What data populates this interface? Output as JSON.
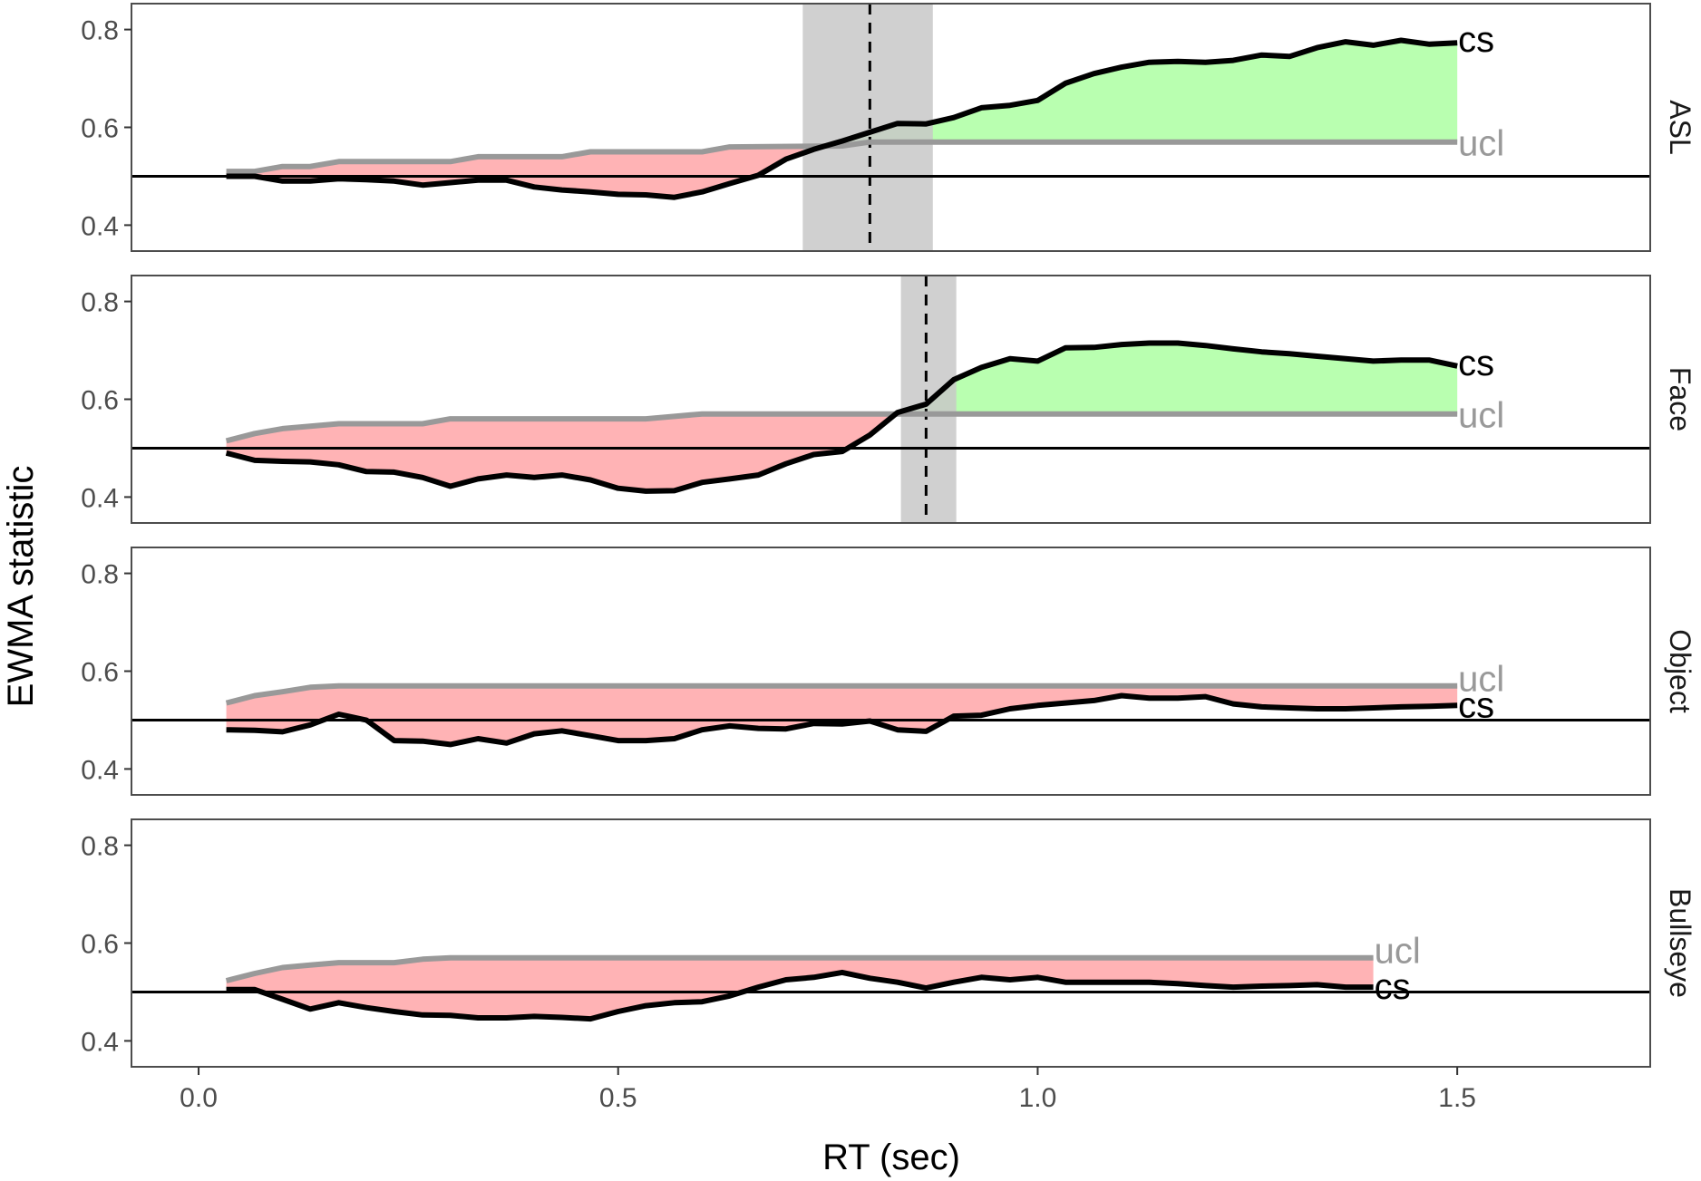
{
  "chart_data": {
    "type": "line",
    "xlabel": "RT (sec)",
    "ylabel": "EWMA statistic",
    "xlim": [
      -0.08,
      1.73
    ],
    "ylim": [
      0.4,
      0.8
    ],
    "x_ticks": [
      0.0,
      0.5,
      1.0,
      1.5
    ],
    "x_tick_labels": [
      "0.0",
      "0.5",
      "1.0",
      "1.5"
    ],
    "y_ticks": [
      0.4,
      0.6,
      0.8
    ],
    "y_tick_labels": [
      "0.4",
      "0.6",
      "0.8"
    ],
    "reference_value": 0.5,
    "grid": false,
    "colors": {
      "cs": "#000000",
      "ucl": "#999999",
      "below_fill": "#ffb3b5",
      "above_fill": "#b9ffb0",
      "band_fill": "#c8c8c8",
      "panel_border": "#4d4d4d",
      "ucl_label": "#999999",
      "cs_label": "#000000"
    },
    "panels": [
      {
        "name": "ASL",
        "onset": 0.8,
        "band": [
          0.72,
          0.875
        ],
        "cs_label": "cs",
        "ucl_label": "ucl",
        "cs": {
          "x": [
            0.033,
            0.067,
            0.1,
            0.133,
            0.167,
            0.2,
            0.233,
            0.267,
            0.3,
            0.333,
            0.367,
            0.4,
            0.433,
            0.467,
            0.5,
            0.533,
            0.567,
            0.6,
            0.633,
            0.667,
            0.7,
            0.733,
            0.767,
            0.8,
            0.833,
            0.867,
            0.9,
            0.933,
            0.967,
            1.0,
            1.033,
            1.067,
            1.1,
            1.133,
            1.167,
            1.2,
            1.233,
            1.267,
            1.3,
            1.333,
            1.367,
            1.4,
            1.433,
            1.467,
            1.5
          ],
          "y": [
            0.5,
            0.5,
            0.49,
            0.49,
            0.495,
            0.493,
            0.49,
            0.482,
            0.487,
            0.492,
            0.492,
            0.478,
            0.472,
            0.468,
            0.463,
            0.462,
            0.457,
            0.468,
            0.485,
            0.502,
            0.535,
            0.555,
            0.572,
            0.59,
            0.608,
            0.607,
            0.62,
            0.64,
            0.645,
            0.655,
            0.69,
            0.71,
            0.723,
            0.733,
            0.735,
            0.733,
            0.737,
            0.748,
            0.745,
            0.763,
            0.775,
            0.768,
            0.778,
            0.77,
            0.773
          ]
        },
        "ucl": {
          "x": [
            0.033,
            0.067,
            0.1,
            0.133,
            0.167,
            0.2,
            0.3,
            0.333,
            0.433,
            0.467,
            0.6,
            0.633,
            0.767,
            0.8,
            1.5
          ],
          "y": [
            0.51,
            0.51,
            0.52,
            0.52,
            0.53,
            0.53,
            0.53,
            0.54,
            0.54,
            0.55,
            0.55,
            0.56,
            0.562,
            0.57,
            0.57
          ]
        }
      },
      {
        "name": "Face",
        "onset": 0.867,
        "band": [
          0.837,
          0.903
        ],
        "cs_label": "cs",
        "ucl_label": "ucl",
        "cs": {
          "x": [
            0.033,
            0.067,
            0.1,
            0.133,
            0.167,
            0.2,
            0.233,
            0.267,
            0.3,
            0.333,
            0.367,
            0.4,
            0.433,
            0.467,
            0.5,
            0.533,
            0.567,
            0.6,
            0.633,
            0.667,
            0.7,
            0.733,
            0.767,
            0.8,
            0.833,
            0.867,
            0.9,
            0.933,
            0.967,
            1.0,
            1.033,
            1.067,
            1.1,
            1.133,
            1.167,
            1.2,
            1.233,
            1.267,
            1.3,
            1.333,
            1.367,
            1.4,
            1.433,
            1.467,
            1.5
          ],
          "y": [
            0.49,
            0.475,
            0.473,
            0.472,
            0.466,
            0.452,
            0.451,
            0.44,
            0.422,
            0.437,
            0.445,
            0.44,
            0.445,
            0.435,
            0.418,
            0.412,
            0.413,
            0.43,
            0.437,
            0.445,
            0.468,
            0.487,
            0.493,
            0.527,
            0.573,
            0.59,
            0.64,
            0.665,
            0.683,
            0.678,
            0.705,
            0.706,
            0.712,
            0.715,
            0.715,
            0.71,
            0.703,
            0.697,
            0.693,
            0.688,
            0.683,
            0.678,
            0.68,
            0.68,
            0.668
          ]
        },
        "ucl": {
          "x": [
            0.033,
            0.067,
            0.1,
            0.133,
            0.167,
            0.2,
            0.267,
            0.3,
            0.533,
            0.567,
            0.6,
            1.5
          ],
          "y": [
            0.515,
            0.53,
            0.54,
            0.545,
            0.55,
            0.55,
            0.55,
            0.56,
            0.56,
            0.565,
            0.57,
            0.57
          ]
        }
      },
      {
        "name": "Object",
        "onset": null,
        "band": null,
        "cs_label": "cs",
        "ucl_label": "ucl",
        "cs": {
          "x": [
            0.033,
            0.067,
            0.1,
            0.133,
            0.167,
            0.2,
            0.233,
            0.267,
            0.3,
            0.333,
            0.367,
            0.4,
            0.433,
            0.467,
            0.5,
            0.533,
            0.567,
            0.6,
            0.633,
            0.667,
            0.7,
            0.733,
            0.767,
            0.8,
            0.833,
            0.867,
            0.9,
            0.933,
            0.967,
            1.0,
            1.033,
            1.067,
            1.1,
            1.133,
            1.167,
            1.2,
            1.233,
            1.267,
            1.3,
            1.333,
            1.367,
            1.4,
            1.433,
            1.467,
            1.5
          ],
          "y": [
            0.48,
            0.479,
            0.476,
            0.49,
            0.512,
            0.5,
            0.458,
            0.457,
            0.45,
            0.462,
            0.453,
            0.472,
            0.478,
            0.468,
            0.458,
            0.458,
            0.462,
            0.48,
            0.488,
            0.483,
            0.482,
            0.493,
            0.492,
            0.498,
            0.48,
            0.477,
            0.508,
            0.51,
            0.523,
            0.53,
            0.535,
            0.54,
            0.55,
            0.545,
            0.545,
            0.548,
            0.533,
            0.527,
            0.525,
            0.523,
            0.523,
            0.525,
            0.527,
            0.528,
            0.53
          ]
        },
        "ucl": {
          "x": [
            0.033,
            0.067,
            0.1,
            0.133,
            0.167,
            1.5
          ],
          "y": [
            0.535,
            0.55,
            0.558,
            0.567,
            0.57,
            0.57
          ]
        }
      },
      {
        "name": "Bullseye",
        "onset": null,
        "band": null,
        "cs_label": "cs",
        "ucl_label": "ucl",
        "cs": {
          "x": [
            0.033,
            0.067,
            0.1,
            0.133,
            0.167,
            0.2,
            0.233,
            0.267,
            0.3,
            0.333,
            0.367,
            0.4,
            0.433,
            0.467,
            0.5,
            0.533,
            0.567,
            0.6,
            0.633,
            0.667,
            0.7,
            0.733,
            0.767,
            0.8,
            0.833,
            0.867,
            0.9,
            0.933,
            0.967,
            1.0,
            1.033,
            1.067,
            1.1,
            1.133,
            1.167,
            1.2,
            1.233,
            1.267,
            1.3,
            1.333,
            1.367,
            1.4
          ],
          "y": [
            0.505,
            0.505,
            0.485,
            0.465,
            0.478,
            0.468,
            0.46,
            0.453,
            0.452,
            0.447,
            0.447,
            0.45,
            0.448,
            0.445,
            0.46,
            0.472,
            0.478,
            0.48,
            0.492,
            0.51,
            0.525,
            0.53,
            0.54,
            0.528,
            0.52,
            0.508,
            0.52,
            0.53,
            0.525,
            0.53,
            0.52,
            0.52,
            0.52,
            0.52,
            0.517,
            0.513,
            0.51,
            0.512,
            0.513,
            0.515,
            0.51,
            0.51
          ]
        },
        "ucl": {
          "x": [
            0.033,
            0.067,
            0.1,
            0.133,
            0.167,
            0.233,
            0.267,
            0.3,
            1.4
          ],
          "y": [
            0.523,
            0.538,
            0.55,
            0.555,
            0.56,
            0.56,
            0.567,
            0.57,
            0.57
          ]
        }
      }
    ]
  }
}
